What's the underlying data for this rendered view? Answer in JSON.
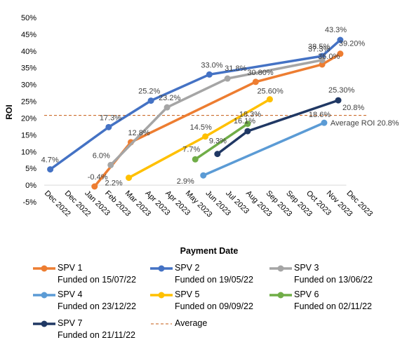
{
  "chart_data": {
    "type": "line",
    "xlabel": "Payment Date",
    "ylabel": "ROI",
    "ylim": [
      -5,
      50
    ],
    "y_ticks": [
      -5,
      0,
      5,
      10,
      15,
      20,
      25,
      30,
      35,
      40,
      45,
      50
    ],
    "x_ticks": [
      "Dec 2022",
      "Dec 2022",
      "Jan 2023",
      "Feb 2023",
      "Mar 2023",
      "Apr 2023",
      "Apr 2023",
      "May 2023",
      "Jun 2023",
      "Jul 2023",
      "Aug 2023",
      "Sep 2023",
      "Sep 2023",
      "Oct 2023",
      "Nov 2023",
      "Dec 2023"
    ],
    "average": {
      "name": "Average",
      "value": 20.8,
      "label": "Average ROI 20.8%",
      "color": "#C55A11"
    },
    "series": [
      {
        "name": "SPV 1",
        "funded": "Funded on 15/07/22",
        "color": "#ED7D31",
        "x": [
          2.5,
          4.3,
          10.5,
          13.8,
          14.7
        ],
        "values": [
          -0.4,
          12.8,
          30.8,
          36.0,
          39.2
        ],
        "labels": [
          "-0.4%",
          "12.8%",
          "30.80%",
          "36.0%",
          "39.20%"
        ]
      },
      {
        "name": "SPV 2",
        "funded": "Funded on 19/05/22",
        "color": "#4472C4",
        "x": [
          0.3,
          3.2,
          5.3,
          8.2,
          13.8,
          14.7
        ],
        "values": [
          4.7,
          17.3,
          25.2,
          33.0,
          38.5,
          43.3
        ],
        "labels": [
          "4.7%",
          "17.3%",
          "25.2%",
          "33.0%",
          "38.5%",
          "43.3%"
        ]
      },
      {
        "name": "SPV 3",
        "funded": "Funded on 13/06/22",
        "color": "#A5A5A5",
        "x": [
          3.3,
          6.1,
          9.1,
          13.8
        ],
        "values": [
          6.0,
          23.2,
          31.8,
          37.3
        ],
        "labels": [
          "6.0%",
          "23.2%",
          "31.8%",
          "37.3%"
        ]
      },
      {
        "name": "SPV 4",
        "funded": "Funded on 23/12/22",
        "color": "#5B9BD5",
        "x": [
          7.9,
          13.9
        ],
        "values": [
          2.9,
          18.6
        ],
        "labels": [
          "2.9%",
          "18.6%"
        ]
      },
      {
        "name": "SPV 5",
        "funded": "Funded on 09/09/22",
        "color": "#FFC000",
        "x": [
          4.2,
          8.0,
          11.2
        ],
        "values": [
          2.2,
          14.5,
          25.6
        ],
        "labels": [
          "2.2%",
          "14.5%",
          "25.60%"
        ]
      },
      {
        "name": "SPV 6",
        "funded": "Funded on 02/11/22",
        "color": "#70AD47",
        "x": [
          7.5,
          10.1
        ],
        "values": [
          7.7,
          18.3
        ],
        "labels": [
          "7.7%",
          "18.3%"
        ]
      },
      {
        "name": "SPV 7",
        "funded": "Funded on 21/11/22",
        "color": "#203864",
        "x": [
          8.6,
          10.1,
          14.6
        ],
        "values": [
          9.3,
          16.1,
          25.3
        ],
        "labels": [
          "9.3%",
          "16.1%",
          "25.30%"
        ],
        "extra_label": "20.8%"
      }
    ]
  }
}
